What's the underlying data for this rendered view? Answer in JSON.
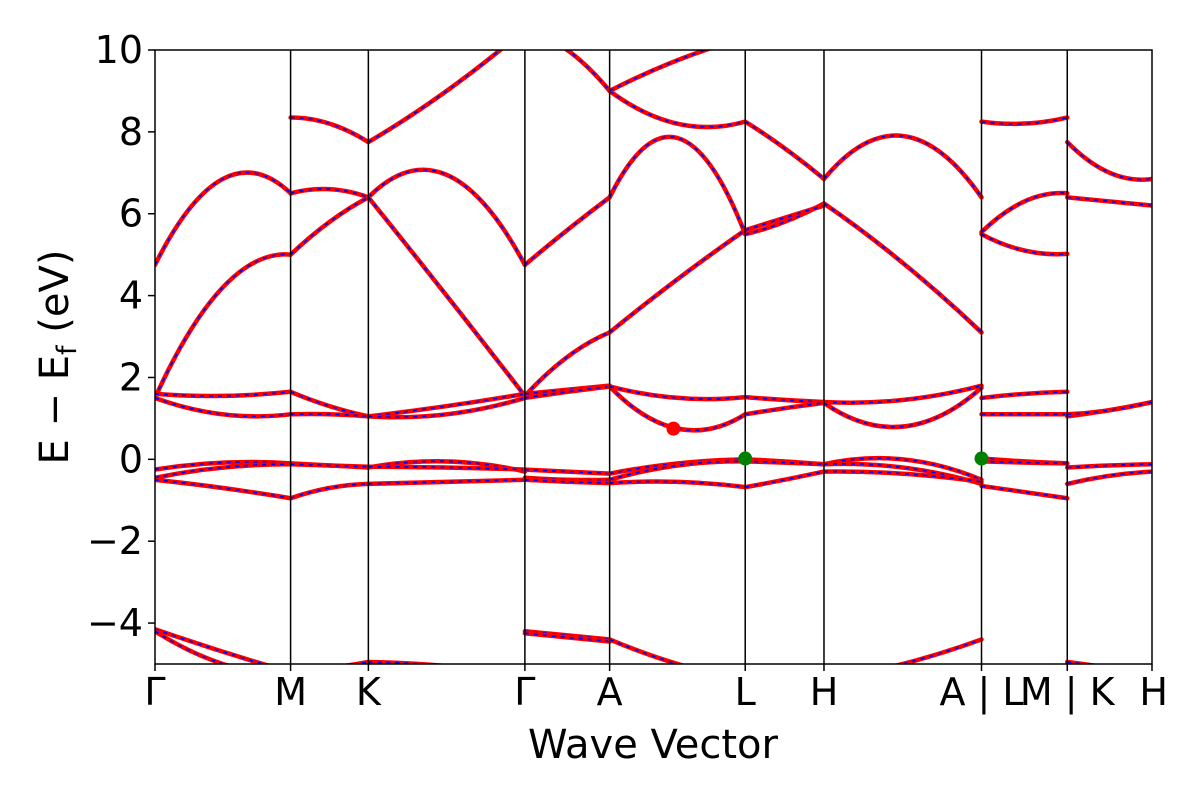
{
  "chart_data": {
    "type": "line",
    "xlabel": "Wave Vector",
    "ylabel": "E − Ef (eV)",
    "ylabel_main": "E  −  E",
    "ylabel_sub": "f",
    "ylabel_tail": " (eV)",
    "ylim": [
      -5,
      10
    ],
    "xlim": [
      0,
      1
    ],
    "yticks": [
      -4,
      -2,
      0,
      2,
      4,
      6,
      8,
      10
    ],
    "ytick_labels": [
      "−4",
      "−2",
      "0",
      "2",
      "4",
      "6",
      "8",
      "10"
    ],
    "kpoints": [
      {
        "label": "Γ",
        "x": 0.0
      },
      {
        "label": "M",
        "x": 0.136
      },
      {
        "label": "K",
        "x": 0.214
      },
      {
        "label": "Γ",
        "x": 0.371
      },
      {
        "label": "A",
        "x": 0.456
      },
      {
        "label": "L",
        "x": 0.592
      },
      {
        "label": "H",
        "x": 0.671
      },
      {
        "label": "A | L",
        "x": 0.829
      },
      {
        "label": "M | K",
        "x": 0.915
      },
      {
        "label": "H",
        "x": 1.0
      }
    ],
    "line_colors": {
      "primary": "#ff0000",
      "secondary": "#0000ff"
    },
    "segments": [
      {
        "x0": 0.0,
        "x1": 0.136,
        "bands": [
          {
            "y": [
              4.75,
              6.85,
              6.5
            ]
          },
          {
            "y": [
              1.5,
              4.2,
              5.0
            ]
          },
          {
            "y": [
              1.6,
              1.55,
              1.65
            ]
          },
          {
            "y": [
              1.5,
              1.1,
              1.1
            ]
          },
          {
            "y": [
              -0.25,
              -0.08,
              -0.1
            ]
          },
          {
            "y": [
              -0.45,
              -0.2,
              -0.12
            ]
          },
          {
            "y": [
              -0.5,
              -0.7,
              -0.95
            ]
          },
          {
            "y": [
              -4.15,
              -4.7,
              -5.2
            ]
          },
          {
            "y": [
              -4.2,
              -5.0,
              -5.3
            ]
          }
        ]
      },
      {
        "x0": 0.136,
        "x1": 0.214,
        "bands": [
          {
            "y": [
              8.35,
              8.2,
              7.75
            ]
          },
          {
            "y": [
              6.5,
              6.6,
              6.4
            ]
          },
          {
            "y": [
              5.0,
              5.8,
              6.4
            ]
          },
          {
            "y": [
              1.65,
              1.3,
              1.05
            ]
          },
          {
            "y": [
              1.1,
              1.1,
              1.05
            ]
          },
          {
            "y": [
              -0.1,
              -0.15,
              -0.2
            ]
          },
          {
            "y": [
              -0.12,
              -0.15,
              -0.18
            ]
          },
          {
            "y": [
              -0.95,
              -0.7,
              -0.6
            ]
          },
          {
            "y": [
              -5.2,
              -5.1,
              -4.95
            ]
          }
        ]
      },
      {
        "x0": 0.214,
        "x1": 0.371,
        "bands": [
          {
            "y": [
              7.75,
              9.0,
              10.5
            ]
          },
          {
            "y": [
              6.4,
              6.95,
              4.75
            ]
          },
          {
            "y": [
              6.4,
              4.0,
              1.55
            ]
          },
          {
            "y": [
              1.05,
              1.3,
              1.6
            ]
          },
          {
            "y": [
              1.05,
              1.1,
              1.5
            ]
          },
          {
            "y": [
              -0.2,
              -0.05,
              -0.3
            ]
          },
          {
            "y": [
              -0.18,
              -0.2,
              -0.25
            ]
          },
          {
            "y": [
              -0.6,
              -0.55,
              -0.5
            ]
          },
          {
            "y": [
              -4.95,
              -5.05,
              -5.3
            ]
          }
        ]
      },
      {
        "x0": 0.371,
        "x1": 0.456,
        "bands": [
          {
            "y": [
              10.5,
              10.0,
              9.0
            ]
          },
          {
            "y": [
              4.75,
              5.6,
              6.4
            ]
          },
          {
            "y": [
              1.55,
              2.5,
              3.1
            ]
          },
          {
            "y": [
              1.6,
              1.7,
              1.8
            ]
          },
          {
            "y": [
              1.5,
              1.65,
              1.78
            ]
          },
          {
            "y": [
              -0.25,
              -0.3,
              -0.35
            ]
          },
          {
            "y": [
              -0.45,
              -0.5,
              -0.5
            ]
          },
          {
            "y": [
              -0.5,
              -0.55,
              -0.58
            ]
          },
          {
            "y": [
              -4.2,
              -4.3,
              -4.4
            ]
          },
          {
            "y": [
              -4.25,
              -4.35,
              -4.45
            ]
          }
        ]
      },
      {
        "x0": 0.456,
        "x1": 0.592,
        "bands": [
          {
            "y": [
              9.0,
              8.2,
              8.25
            ]
          },
          {
            "y": [
              9.0,
              9.75,
              10.3
            ]
          },
          {
            "y": [
              6.4,
              7.85,
              5.5
            ]
          },
          {
            "y": [
              3.1,
              4.4,
              5.6
            ]
          },
          {
            "y": [
              1.78,
              0.75,
              1.1
            ]
          },
          {
            "y": [
              1.78,
              1.5,
              1.52
            ]
          },
          {
            "y": [
              -0.35,
              -0.1,
              0.0
            ]
          },
          {
            "y": [
              -0.5,
              -0.15,
              -0.05
            ]
          },
          {
            "y": [
              -0.58,
              -0.55,
              -0.68
            ]
          },
          {
            "y": [
              -4.4,
              -5.0,
              -5.4
            ]
          }
        ]
      },
      {
        "x0": 0.592,
        "x1": 0.671,
        "bands": [
          {
            "y": [
              8.25,
              7.6,
              6.85
            ]
          },
          {
            "y": [
              5.5,
              5.8,
              6.25
            ]
          },
          {
            "y": [
              5.6,
              5.9,
              6.2
            ]
          },
          {
            "y": [
              1.52,
              1.45,
              1.4
            ]
          },
          {
            "y": [
              1.1,
              1.25,
              1.38
            ]
          },
          {
            "y": [
              0.0,
              -0.05,
              -0.12
            ]
          },
          {
            "y": [
              -0.05,
              -0.08,
              -0.12
            ]
          },
          {
            "y": [
              -0.68,
              -0.5,
              -0.3
            ]
          }
        ]
      },
      {
        "x0": 0.671,
        "x1": 0.829,
        "bands": [
          {
            "y": [
              6.85,
              7.9,
              6.4
            ]
          },
          {
            "y": [
              6.25,
              4.8,
              3.1
            ]
          },
          {
            "y": [
              1.4,
              1.45,
              1.8
            ]
          },
          {
            "y": [
              1.38,
              0.8,
              1.75
            ]
          },
          {
            "y": [
              -0.12,
              0.0,
              -0.5
            ]
          },
          {
            "y": [
              -0.12,
              -0.2,
              -0.6
            ]
          },
          {
            "y": [
              -0.3,
              -0.35,
              -0.55
            ]
          },
          {
            "y": [
              -5.4,
              -5.0,
              -4.4
            ]
          }
        ]
      },
      {
        "x0": 0.829,
        "x1": 0.915,
        "bands": [
          {
            "y": [
              8.25,
              8.2,
              8.35
            ]
          },
          {
            "y": [
              5.55,
              6.3,
              6.5
            ]
          },
          {
            "y": [
              5.5,
              5.1,
              5.02
            ]
          },
          {
            "y": [
              1.5,
              1.6,
              1.65
            ]
          },
          {
            "y": [
              1.1,
              1.1,
              1.1
            ]
          },
          {
            "y": [
              0.02,
              -0.05,
              -0.1
            ]
          },
          {
            "y": [
              -0.05,
              -0.08,
              -0.1
            ]
          },
          {
            "y": [
              -0.65,
              -0.8,
              -0.95
            ]
          }
        ]
      },
      {
        "x0": 0.915,
        "x1": 1.0,
        "bands": [
          {
            "y": [
              7.75,
              7.0,
              6.85
            ]
          },
          {
            "y": [
              6.4,
              6.3,
              6.2
            ]
          },
          {
            "y": [
              1.05,
              1.2,
              1.4
            ]
          },
          {
            "y": [
              1.1,
              1.2,
              1.4
            ]
          },
          {
            "y": [
              -0.2,
              -0.15,
              -0.12
            ]
          },
          {
            "y": [
              -0.6,
              -0.4,
              -0.3
            ]
          },
          {
            "y": [
              -4.95,
              -5.1,
              -5.3
            ]
          }
        ]
      }
    ],
    "markers": [
      {
        "x": 0.52,
        "y": 0.75,
        "color": "#ff0000",
        "note": "CBM"
      },
      {
        "x": 0.592,
        "y": 0.02,
        "color": "#008000",
        "note": "VBM"
      },
      {
        "x": 0.829,
        "y": 0.02,
        "color": "#008000",
        "note": "VBM"
      }
    ]
  }
}
